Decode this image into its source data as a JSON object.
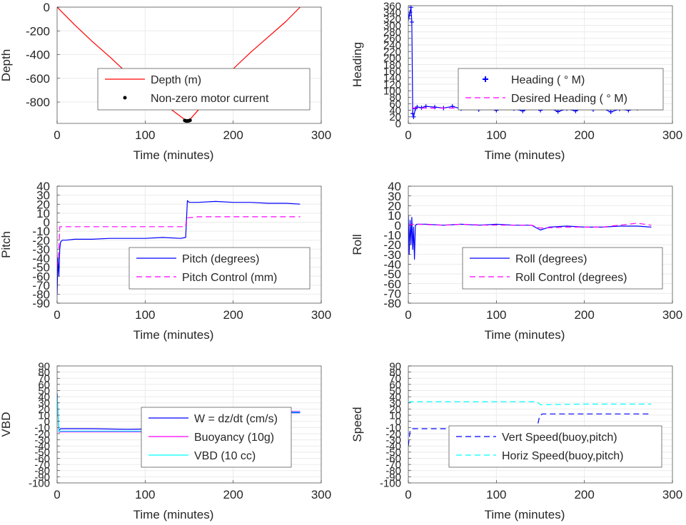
{
  "figure": {
    "background": "#ffffff",
    "gridColor": "#ebebeb",
    "axisColor": "#262626"
  },
  "chart_data": [
    {
      "id": "depth",
      "type": "line",
      "xlabel": "Time (minutes)",
      "ylabel": "Depth",
      "xlim": [
        0,
        300
      ],
      "ylim": [
        -980,
        0
      ],
      "xticks": [
        "0",
        "100",
        "200",
        "300"
      ],
      "xtickValues": [
        0,
        100,
        200,
        300
      ],
      "yticks": [
        "0",
        "-200",
        "-400",
        "-600",
        "-800"
      ],
      "ytickValues": [
        0,
        -200,
        -400,
        -600,
        -800
      ],
      "grid": true,
      "legend_position": "lower-right",
      "series": [
        {
          "name": "Depth (m)",
          "style": "solid",
          "color": "#ff0000",
          "x": [
            0,
            20,
            40,
            60,
            80,
            100,
            120,
            140,
            147,
            150,
            160,
            180,
            200,
            220,
            240,
            260,
            276
          ],
          "y": [
            0,
            -150,
            -290,
            -420,
            -560,
            -690,
            -810,
            -920,
            -960,
            -955,
            -870,
            -700,
            -520,
            -380,
            -250,
            -120,
            0
          ]
        },
        {
          "name": "Non-zero motor current",
          "style": "marker",
          "color": "#000000",
          "x": [
            145,
            146,
            147,
            148,
            149,
            150,
            151
          ],
          "y": [
            -955,
            -958,
            -960,
            -960,
            -959,
            -957,
            -954
          ]
        }
      ]
    },
    {
      "id": "heading",
      "type": "line",
      "xlabel": "Time (minutes)",
      "ylabel": "Heading",
      "xlim": [
        0,
        300
      ],
      "ylim": [
        0,
        360
      ],
      "xticks": [
        "0",
        "100",
        "200",
        "300"
      ],
      "xtickValues": [
        0,
        100,
        200,
        300
      ],
      "yticks": [
        "0",
        "20",
        "40",
        "60",
        "80",
        "100",
        "120",
        "140",
        "160",
        "180",
        "200",
        "220",
        "240",
        "260",
        "280",
        "300",
        "320",
        "340",
        "360"
      ],
      "ytickValues": [
        0,
        20,
        40,
        60,
        80,
        100,
        120,
        140,
        160,
        180,
        200,
        220,
        240,
        260,
        280,
        300,
        320,
        340,
        360
      ],
      "grid": true,
      "legend_position": "right",
      "series": [
        {
          "name": "Heading ( ° M)",
          "style": "plus",
          "color": "#0000ff",
          "x": [
            0,
            1,
            2,
            3,
            4,
            5,
            6,
            8,
            10,
            15,
            20,
            30,
            40,
            50,
            60,
            70,
            80,
            90,
            100,
            110,
            120,
            130,
            140,
            150,
            160,
            170,
            180,
            190,
            200,
            210,
            220,
            230,
            240,
            250,
            260,
            270,
            276
          ],
          "y": [
            320,
            330,
            340,
            355,
            310,
            30,
            20,
            45,
            50,
            48,
            52,
            50,
            47,
            52,
            45,
            50,
            42,
            48,
            40,
            52,
            45,
            38,
            50,
            40,
            48,
            36,
            45,
            38,
            50,
            42,
            47,
            35,
            44,
            40,
            46,
            52,
            55
          ]
        },
        {
          "name": "Desired Heading (   ° M)",
          "style": "dash",
          "color": "#ff00ff",
          "x": [
            4,
            276
          ],
          "y": [
            47,
            47
          ]
        }
      ]
    },
    {
      "id": "pitch",
      "type": "line",
      "xlabel": "Time (minutes)",
      "ylabel": "Pitch",
      "xlim": [
        0,
        300
      ],
      "ylim": [
        -90,
        40
      ],
      "xticks": [
        "0",
        "100",
        "200",
        "300"
      ],
      "xtickValues": [
        0,
        100,
        200,
        300
      ],
      "yticks": [
        "40",
        "30",
        "20",
        "10",
        "0",
        "-10",
        "-20",
        "-30",
        "-40",
        "-50",
        "-60",
        "-70",
        "-80",
        "-90"
      ],
      "ytickValues": [
        40,
        30,
        20,
        10,
        0,
        -10,
        -20,
        -30,
        -40,
        -50,
        -60,
        -70,
        -80,
        -90
      ],
      "grid": true,
      "legend_position": "lower-right",
      "series": [
        {
          "name": "Pitch (degrees)",
          "style": "solid",
          "color": "#0000ff",
          "x": [
            0,
            1,
            2,
            3,
            4,
            6,
            10,
            20,
            40,
            60,
            80,
            100,
            120,
            140,
            146,
            148,
            150,
            160,
            180,
            200,
            220,
            240,
            260,
            276
          ],
          "y": [
            -80,
            -40,
            -60,
            -30,
            -22,
            -20,
            -20,
            -19,
            -19,
            -18,
            -18,
            -18,
            -17,
            -18,
            -17,
            24,
            22,
            22,
            23,
            22,
            22,
            21,
            21,
            20
          ]
        },
        {
          "name": "Pitch Control (mm)",
          "style": "dash",
          "color": "#ff00ff",
          "x": [
            0,
            2,
            3,
            146,
            147,
            150,
            160,
            276
          ],
          "y": [
            -50,
            -30,
            -5,
            -5,
            5,
            5,
            6,
            6
          ]
        }
      ]
    },
    {
      "id": "roll",
      "type": "line",
      "xlabel": "Time (minutes)",
      "ylabel": "Roll",
      "xlim": [
        0,
        300
      ],
      "ylim": [
        -80,
        40
      ],
      "xticks": [
        "0",
        "100",
        "200",
        "300"
      ],
      "xtickValues": [
        0,
        100,
        200,
        300
      ],
      "yticks": [
        "40",
        "30",
        "20",
        "10",
        "0",
        "-10",
        "-20",
        "-30",
        "-40",
        "-50",
        "-60",
        "-70",
        "-80"
      ],
      "ytickValues": [
        40,
        30,
        20,
        10,
        0,
        -10,
        -20,
        -30,
        -40,
        -50,
        -60,
        -70,
        -80
      ],
      "grid": true,
      "legend_position": "lower-right",
      "series": [
        {
          "name": "Roll (degrees)",
          "style": "solid",
          "color": "#0000ff",
          "x": [
            0,
            1,
            2,
            3,
            4,
            5,
            6,
            7,
            8,
            10,
            20,
            40,
            60,
            80,
            100,
            120,
            140,
            150,
            160,
            180,
            200,
            220,
            240,
            260,
            276
          ],
          "y": [
            10,
            -30,
            5,
            -20,
            8,
            -25,
            -2,
            -35,
            0,
            1,
            1,
            0,
            1,
            0,
            1,
            0,
            0,
            -5,
            -2,
            -1,
            -2,
            -2,
            -1,
            -1,
            -2
          ]
        },
        {
          "name": "Roll Control (degrees)",
          "style": "dash",
          "color": "#ff00ff",
          "x": [
            0,
            5,
            10,
            40,
            60,
            90,
            120,
            140,
            150,
            180,
            220,
            260,
            276
          ],
          "y": [
            0,
            1,
            1,
            0,
            1,
            0,
            0,
            0,
            -3,
            -2,
            -2,
            2,
            0
          ]
        }
      ]
    },
    {
      "id": "vbd",
      "type": "line",
      "xlabel": "Time (minutes)",
      "ylabel": "VBD",
      "xlim": [
        0,
        300
      ],
      "ylim": [
        -100,
        90
      ],
      "xticks": [
        "0",
        "100",
        "200",
        "300"
      ],
      "xtickValues": [
        0,
        100,
        200,
        300
      ],
      "yticks": [
        "90",
        "80",
        "70",
        "60",
        "50",
        "40",
        "30",
        "20",
        "10",
        "0",
        "-10",
        "-20",
        "-30",
        "-40",
        "-50",
        "-60",
        "-70",
        "-80",
        "-90",
        "-100"
      ],
      "ytickValues": [
        90,
        80,
        70,
        60,
        50,
        40,
        30,
        20,
        10,
        0,
        -10,
        -20,
        -30,
        -40,
        -50,
        -60,
        -70,
        -80,
        -90,
        -100
      ],
      "grid": true,
      "legend_position": "lower-right",
      "series": [
        {
          "name": "W = dz/dt (cm/s)",
          "style": "solid",
          "color": "#0000ff",
          "x": [
            0,
            2,
            4,
            10,
            40,
            80,
            120,
            146,
            149,
            152,
            200,
            276
          ],
          "y": [
            45,
            -15,
            -12,
            -12,
            -12,
            -13,
            -12,
            -13,
            14,
            14,
            14,
            14
          ]
        },
        {
          "name": "Buoyancy (10g)",
          "style": "solid",
          "color": "#ff00ff",
          "x": [
            0,
            2,
            4,
            146,
            149,
            152,
            276
          ],
          "y": [
            40,
            -18,
            -17,
            -17,
            16,
            16,
            16
          ]
        },
        {
          "name": "VBD (10 cc)",
          "style": "solid",
          "color": "#00ffff",
          "x": [
            0,
            2,
            4,
            146,
            149,
            152,
            276
          ],
          "y": [
            42,
            -17,
            -16,
            -16,
            15,
            15,
            15
          ]
        }
      ]
    },
    {
      "id": "speed",
      "type": "line",
      "xlabel": "Time (minutes)",
      "ylabel": "Speed",
      "xlim": [
        0,
        300
      ],
      "ylim": [
        -100,
        90
      ],
      "xticks": [
        "0",
        "100",
        "200",
        "300"
      ],
      "xtickValues": [
        0,
        100,
        200,
        300
      ],
      "yticks": [
        "90",
        "80",
        "70",
        "60",
        "50",
        "40",
        "30",
        "20",
        "10",
        "0",
        "-10",
        "-20",
        "-30",
        "-40",
        "-50",
        "-60",
        "-70",
        "-80",
        "-90",
        "-100"
      ],
      "ytickValues": [
        90,
        80,
        70,
        60,
        50,
        40,
        30,
        20,
        10,
        0,
        -10,
        -20,
        -30,
        -40,
        -50,
        -60,
        -70,
        -80,
        -90,
        -100
      ],
      "grid": true,
      "legend_position": "lower-right",
      "series": [
        {
          "name": "Vert Speed(buoy,pitch)",
          "style": "dash",
          "color": "#0000ff",
          "x": [
            0,
            2,
            4,
            20,
            60,
            100,
            146,
            149,
            152,
            200,
            276
          ],
          "y": [
            -40,
            -15,
            -12,
            -12,
            -12,
            -12,
            -12,
            8,
            12,
            12,
            12
          ]
        },
        {
          "name": "Horiz Speed(buoy,pitch)",
          "style": "dash",
          "color": "#00ffff",
          "x": [
            0,
            2,
            4,
            50,
            100,
            146,
            150,
            200,
            276
          ],
          "y": [
            30,
            32,
            32,
            32,
            32,
            32,
            27,
            28,
            28
          ]
        }
      ]
    }
  ]
}
